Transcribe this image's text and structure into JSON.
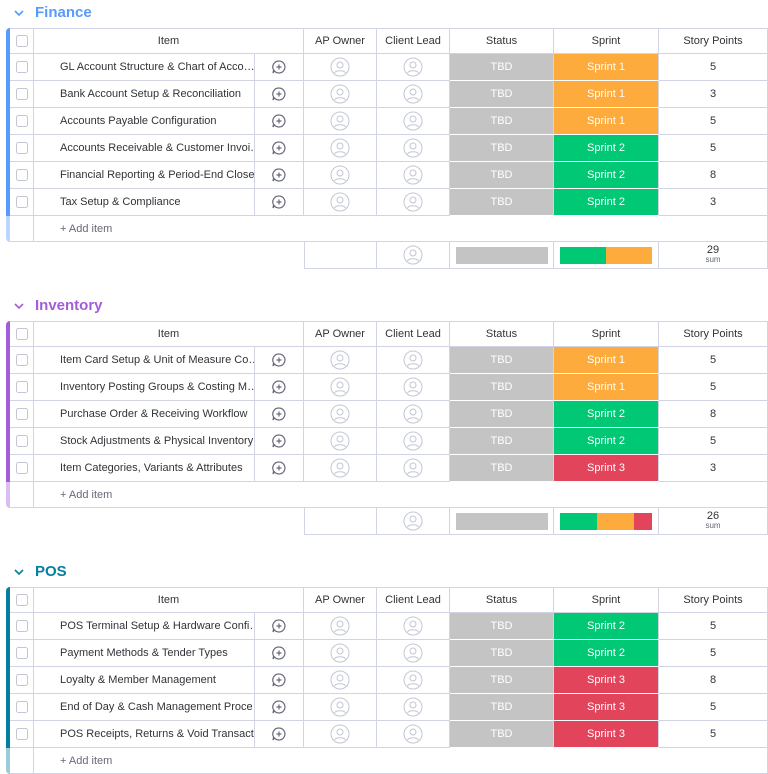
{
  "columns": [
    "Item",
    "AP Owner",
    "Client Lead",
    "Status",
    "Sprint",
    "Story Points"
  ],
  "add_item": "+ Add item",
  "sum_label": "sum",
  "status_color": "#c4c4c4",
  "sprint_colors": {
    "Sprint 2": "#00c875",
    "Sprint 1": "#fdab3d",
    "Sprint 3": "#e2445c"
  },
  "groups": [
    {
      "title": "Finance",
      "color": "#579bfc",
      "sum": 29,
      "rows": [
        {
          "item": "GL Account Structure & Chart of Acco…",
          "status": "TBD",
          "sprint": "Sprint 1",
          "points": 5
        },
        {
          "item": "Bank Account Setup & Reconciliation",
          "status": "TBD",
          "sprint": "Sprint 1",
          "points": 3
        },
        {
          "item": "Accounts Payable Configuration",
          "status": "TBD",
          "sprint": "Sprint 1",
          "points": 5
        },
        {
          "item": "Accounts Receivable & Customer Invoi…",
          "status": "TBD",
          "sprint": "Sprint 2",
          "points": 5
        },
        {
          "item": "Financial Reporting & Period-End Close",
          "status": "TBD",
          "sprint": "Sprint 2",
          "points": 8
        },
        {
          "item": "Tax Setup & Compliance",
          "status": "TBD",
          "sprint": "Sprint 2",
          "points": 3
        }
      ]
    },
    {
      "title": "Inventory",
      "color": "#a25ddc",
      "sum": 26,
      "rows": [
        {
          "item": "Item Card Setup & Unit of Measure Co…",
          "status": "TBD",
          "sprint": "Sprint 1",
          "points": 5
        },
        {
          "item": "Inventory Posting Groups & Costing M…",
          "status": "TBD",
          "sprint": "Sprint 1",
          "points": 5
        },
        {
          "item": "Purchase Order & Receiving Workflow",
          "status": "TBD",
          "sprint": "Sprint 2",
          "points": 8
        },
        {
          "item": "Stock Adjustments & Physical Inventory",
          "status": "TBD",
          "sprint": "Sprint 2",
          "points": 5
        },
        {
          "item": "Item Categories, Variants & Attributes",
          "status": "TBD",
          "sprint": "Sprint 3",
          "points": 3
        }
      ]
    },
    {
      "title": "POS",
      "color": "#037f9f",
      "rows": [
        {
          "item": "POS Terminal Setup & Hardware Confi…",
          "status": "TBD",
          "sprint": "Sprint 2",
          "points": 5
        },
        {
          "item": "Payment Methods & Tender Types",
          "status": "TBD",
          "sprint": "Sprint 2",
          "points": 5
        },
        {
          "item": "Loyalty & Member Management",
          "status": "TBD",
          "sprint": "Sprint 3",
          "points": 8
        },
        {
          "item": "End of Day & Cash Management Proce…",
          "status": "TBD",
          "sprint": "Sprint 3",
          "points": 5
        },
        {
          "item": "POS Receipts, Returns & Void Transact…",
          "status": "TBD",
          "sprint": "Sprint 3",
          "points": 5
        }
      ]
    }
  ]
}
